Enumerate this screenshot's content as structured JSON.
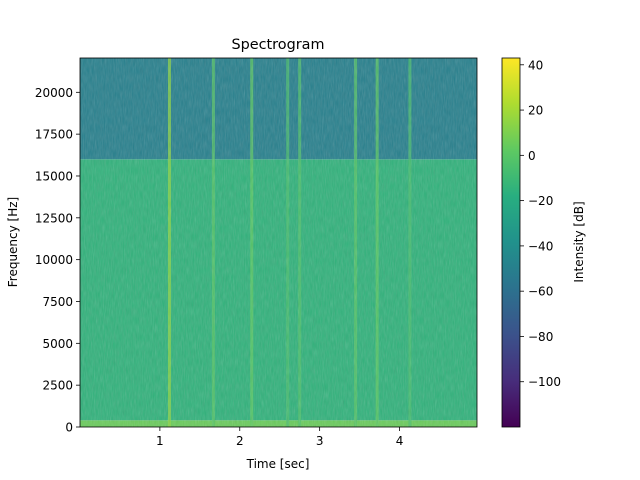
{
  "chart_data": {
    "type": "heatmap",
    "title": "Spectrogram",
    "xlabel": "Time [sec]",
    "ylabel": "Frequency [Hz]",
    "colorbar_label": "Intensity [dB]",
    "colormap": "viridis",
    "xlim": [
      0.0,
      4.97
    ],
    "ylim": [
      0,
      22050
    ],
    "xticks": [
      1,
      2,
      3,
      4
    ],
    "yticks": [
      0,
      2500,
      5000,
      7500,
      10000,
      12500,
      15000,
      17500,
      20000
    ],
    "colorbar_range": [
      -120,
      43
    ],
    "colorbar_ticks": [
      -100,
      -80,
      -60,
      -40,
      -20,
      0,
      20,
      40
    ],
    "grid": false,
    "regions": [
      {
        "freq_range": [
          0,
          400
        ],
        "level_db": 5
      },
      {
        "freq_range": [
          400,
          16000
        ],
        "level_db": -15
      },
      {
        "freq_range": [
          16000,
          22050
        ],
        "level_db": -50
      }
    ],
    "transients": [
      {
        "time": 1.12,
        "level_db": 15
      },
      {
        "time": 1.67,
        "level_db": 0
      },
      {
        "time": 2.15,
        "level_db": 2
      },
      {
        "time": 2.6,
        "level_db": -5
      },
      {
        "time": 2.75,
        "level_db": -3
      },
      {
        "time": 3.45,
        "level_db": 0
      },
      {
        "time": 3.72,
        "level_db": 2
      },
      {
        "time": 4.13,
        "level_db": -5
      }
    ]
  }
}
